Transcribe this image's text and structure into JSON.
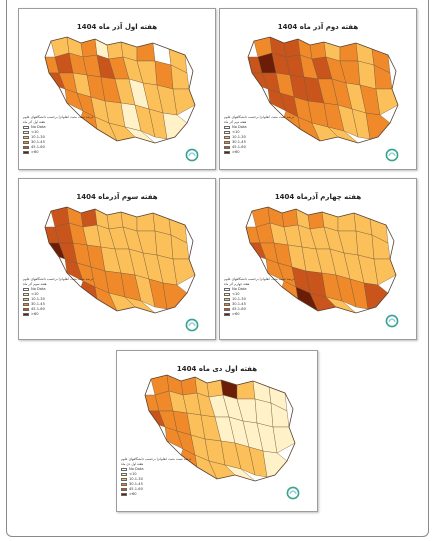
{
  "palette": {
    "no_data": "#ffffff",
    "c1": "#fff2c8",
    "c2": "#fcc05a",
    "c3": "#f0892a",
    "c4": "#c9541c",
    "c5": "#6b1d08"
  },
  "legend": {
    "caption": "درصد تست مثبت انفلوانزا برحسب دانشگاههای علوم",
    "items": [
      {
        "label": "No Data",
        "color_key": "no_data"
      },
      {
        "label": "<10",
        "color_key": "c1"
      },
      {
        "label": "10.1-30",
        "color_key": "c2"
      },
      {
        "label": "30.1-45",
        "color_key": "c3"
      },
      {
        "label": "45.1-60",
        "color_key": "c4"
      },
      {
        "label": ">60",
        "color_key": "c5"
      }
    ]
  },
  "maps": [
    {
      "title": "هفته اول آذر ماه 1404",
      "subcaption": "هفته اول آذر ماه",
      "scheme": "w1"
    },
    {
      "title": "هفته دوم آذر ماه 1404",
      "subcaption": "هفته دوم آذر ماه",
      "scheme": "w2"
    },
    {
      "title": "هفته سوم آذرماه 1404",
      "subcaption": "هفته سوم آذر ماه",
      "scheme": "w3"
    },
    {
      "title": "هفته چهارم آذرماه 1404",
      "subcaption": "هفته چهارم آذر ماه",
      "scheme": "w4"
    },
    {
      "title": "هفته اول دی ماه 1404",
      "subcaption": "هفته اول دی ماه",
      "scheme": "w5"
    }
  ]
}
